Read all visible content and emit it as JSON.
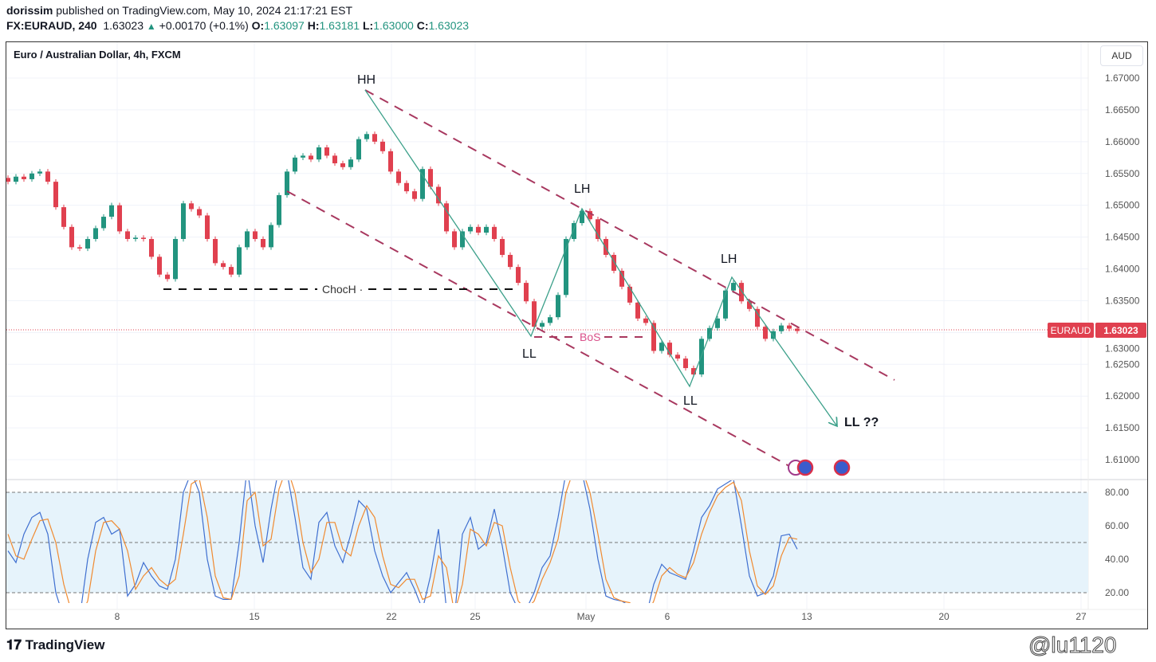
{
  "header": {
    "author": "dorissim",
    "published": "published on TradingView.com, May 10, 2024 21:17:21 EST",
    "symbol": "FX:EURAUD, 240",
    "last": "1.63023",
    "change": "+0.00170 (+0.1%)",
    "o_label": "O:",
    "o": "1.63097",
    "h_label": "H:",
    "h": "1.63181",
    "l_label": "L:",
    "l": "1.63000",
    "c_label": "C:",
    "c": "1.63023",
    "up_icon": "triangle-up-icon"
  },
  "chart_title": "Euro / Australian Dollar, 4h, FXCM",
  "currency": "AUD",
  "price_label": {
    "symbol": "EURAUD",
    "value": "1.63023"
  },
  "colors": {
    "up": "#22947f",
    "down": "#e0404f",
    "channel": "#a8385f",
    "zigzag": "#3ca08a",
    "k": "#3f6fd0",
    "d": "#f08a30",
    "band": "#e6f3fb",
    "bos": "#d9508a"
  },
  "footer": {
    "logo": "TradingView",
    "watermark": "@lu1120"
  },
  "annotations": {
    "hh": "HH",
    "lh1": "LH",
    "lh2": "LH",
    "ll1": "LL",
    "ll2": "LL",
    "ll3": "LL ??",
    "choch": "ChocH ·",
    "bos": "BoS"
  },
  "chart_data": [
    {
      "type": "candlestick",
      "title": "Euro / Australian Dollar, 4h, FXCM",
      "ylim": [
        1.6075,
        1.674
      ],
      "yticks": [
        "1.67000",
        "1.66500",
        "1.66000",
        "1.65500",
        "1.65000",
        "1.64500",
        "1.64000",
        "1.63500",
        "1.63000",
        "1.62500",
        "1.62000",
        "1.61500",
        "1.61000"
      ],
      "xticks": [
        "8",
        "15",
        "22",
        "25",
        "May",
        "6",
        "13",
        "20",
        "27"
      ],
      "grid": true,
      "closes": [
        1.6537,
        1.6545,
        1.6541,
        1.655,
        1.6553,
        1.6537,
        1.6497,
        1.6466,
        1.6434,
        1.6432,
        1.6447,
        1.6464,
        1.6482,
        1.65,
        1.6459,
        1.6447,
        1.6449,
        1.6447,
        1.6419,
        1.6391,
        1.6384,
        1.6447,
        1.6503,
        1.6494,
        1.6484,
        1.6447,
        1.6409,
        1.6403,
        1.6391,
        1.6434,
        1.6459,
        1.6447,
        1.6434,
        1.6469,
        1.6516,
        1.6553,
        1.6575,
        1.6578,
        1.6572,
        1.6591,
        1.6578,
        1.6566,
        1.656,
        1.6572,
        1.6604,
        1.6612,
        1.66,
        1.6585,
        1.6553,
        1.6535,
        1.6522,
        1.651,
        1.6557,
        1.6529,
        1.6503,
        1.6459,
        1.6434,
        1.6459,
        1.6466,
        1.6457,
        1.6466,
        1.6447,
        1.6422,
        1.6403,
        1.6378,
        1.6349,
        1.6309,
        1.6315,
        1.6324,
        1.6359,
        1.6447,
        1.6472,
        1.6491,
        1.6478,
        1.6447,
        1.6422,
        1.6397,
        1.6372,
        1.6347,
        1.6322,
        1.6315,
        1.6271,
        1.6284,
        1.6265,
        1.6259,
        1.6244,
        1.6234,
        1.629,
        1.6307,
        1.6322,
        1.6366,
        1.6378,
        1.6349,
        1.6337,
        1.6309,
        1.629,
        1.6302,
        1.6311,
        1.6306,
        1.63023
      ],
      "last_price": 1.63023
    },
    {
      "type": "line",
      "ylim": [
        14,
        88
      ],
      "yticks": [
        "80.00",
        "60.00",
        "40.00",
        "20.00"
      ],
      "levels": [
        80,
        50,
        20
      ],
      "series": [
        {
          "key": "k",
          "values": [
            45,
            38,
            55,
            65,
            68,
            55,
            20,
            5,
            5,
            5,
            40,
            62,
            65,
            55,
            58,
            18,
            25,
            38,
            30,
            24,
            22,
            40,
            80,
            92,
            80,
            40,
            18,
            16,
            16,
            50,
            95,
            60,
            38,
            70,
            95,
            92,
            65,
            35,
            28,
            62,
            68,
            48,
            38,
            55,
            75,
            70,
            45,
            30,
            20,
            26,
            32,
            22,
            10,
            30,
            58,
            10,
            5,
            55,
            65,
            46,
            50,
            70,
            48,
            20,
            10,
            10,
            20,
            35,
            42,
            65,
            92,
            95,
            92,
            70,
            40,
            18,
            16,
            15,
            12,
            5,
            5,
            25,
            37,
            32,
            30,
            28,
            45,
            65,
            72,
            82,
            85,
            88,
            60,
            30,
            18,
            20,
            30,
            54,
            55,
            46
          ]
        },
        {
          "key": "d",
          "values": [
            55,
            42,
            40,
            52,
            63,
            64,
            50,
            25,
            8,
            5,
            15,
            45,
            62,
            63,
            58,
            45,
            22,
            30,
            35,
            28,
            24,
            28,
            55,
            85,
            88,
            65,
            30,
            17,
            16,
            30,
            75,
            80,
            48,
            52,
            82,
            95,
            80,
            50,
            32,
            40,
            62,
            62,
            46,
            42,
            60,
            72,
            65,
            42,
            25,
            23,
            28,
            28,
            16,
            18,
            42,
            35,
            8,
            25,
            58,
            55,
            48,
            62,
            60,
            35,
            15,
            10,
            15,
            28,
            38,
            52,
            80,
            94,
            94,
            80,
            55,
            28,
            17,
            15,
            14,
            8,
            5,
            15,
            30,
            35,
            31,
            29,
            38,
            55,
            68,
            78,
            83,
            86,
            75,
            45,
            24,
            19,
            24,
            42,
            53,
            52
          ]
        }
      ]
    }
  ]
}
